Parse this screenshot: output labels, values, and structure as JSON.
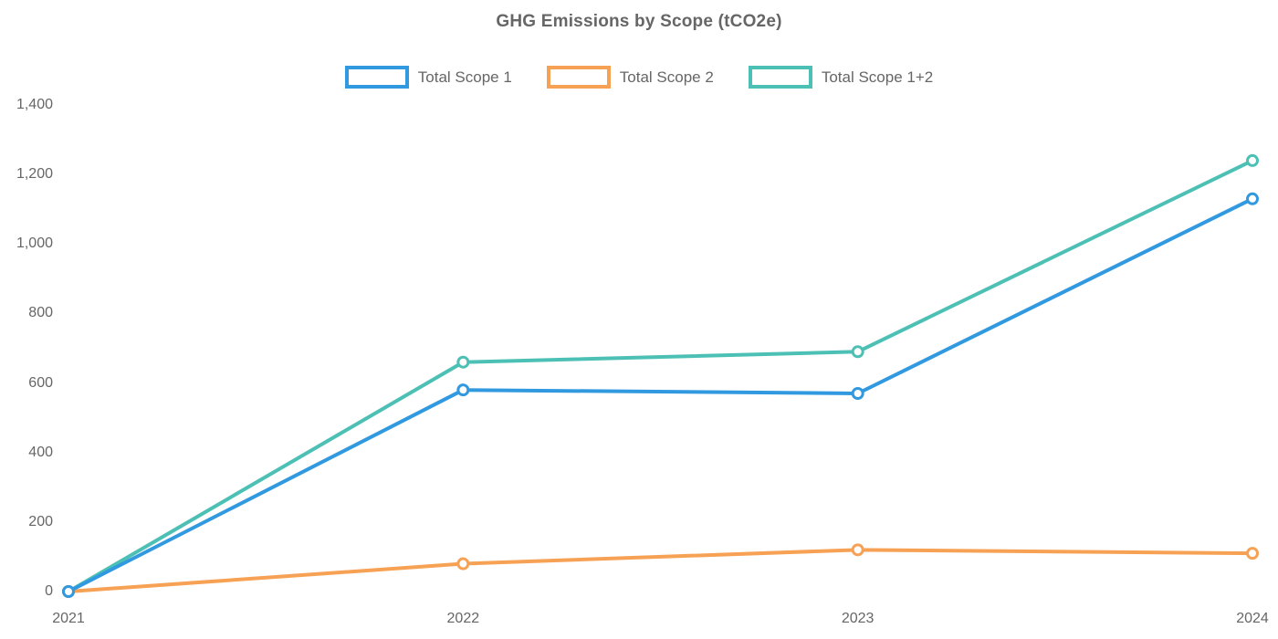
{
  "chart_data": {
    "type": "line",
    "title": "GHG Emissions by Scope (tCO2e)",
    "x": [
      "2021",
      "2022",
      "2023",
      "2024"
    ],
    "series": [
      {
        "name": "Total Scope 1",
        "color": "#3199E0",
        "values": [
          0,
          580,
          570,
          1130
        ]
      },
      {
        "name": "Total Scope 2",
        "color": "#F7A154",
        "values": [
          0,
          80,
          120,
          110
        ]
      },
      {
        "name": "Total Scope 1+2",
        "color": "#4DC0B5",
        "values": [
          0,
          660,
          690,
          1240
        ]
      }
    ],
    "xlabel": "",
    "ylabel": "",
    "ylim": [
      0,
      1400
    ],
    "ytick_step": 200,
    "grid": false,
    "legend_position": "top",
    "marker_style": "hollow-circle",
    "text_color": "#666666",
    "background_color": "#ffffff"
  }
}
